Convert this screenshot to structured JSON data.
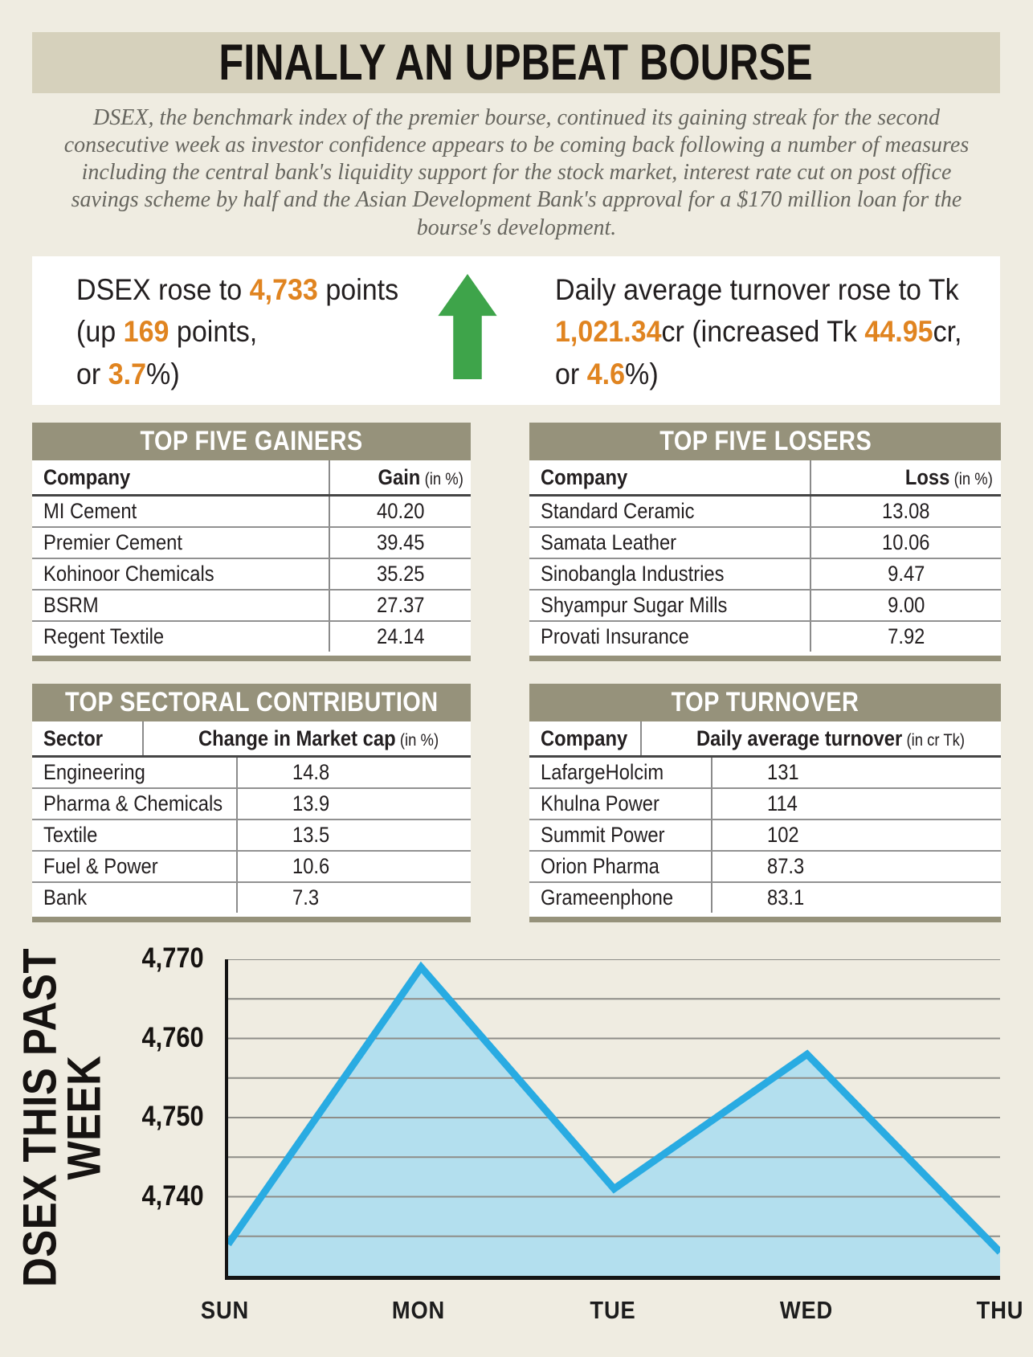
{
  "page_title": "FINALLY AN UPBEAT BOURSE",
  "intro_text": "DSEX, the benchmark index of the premier bourse, continued its gaining streak for the second consecutive week as investor confidence appears to be coming back following a number of measures including the central bank's liquidity support for the stock market, interest rate cut on post office savings scheme by half and the Asian Development Bank's approval for a $170 million loan for the bourse's development.",
  "stats": {
    "left": {
      "line1": [
        "DSEX rose to ",
        "4,733",
        " points"
      ],
      "line2": [
        "(up ",
        "169",
        " points,"
      ],
      "line3": [
        "or ",
        "3.7",
        "%)"
      ]
    },
    "arrow_icon": "green-up-arrow",
    "right": {
      "line1": "Daily average turnover rose to Tk",
      "line2": [
        "1,021.34",
        "cr (increased Tk ",
        "44.95",
        "cr,"
      ],
      "line3": [
        "or ",
        "4.6",
        "%)"
      ]
    }
  },
  "tables": {
    "gainers": {
      "title": "TOP FIVE GAINERS",
      "col1_header": "Company",
      "col2_header": "Gain",
      "col2_unit": "(in %)",
      "rows": [
        {
          "name": "MI Cement",
          "value": "40.20"
        },
        {
          "name": "Premier Cement",
          "value": "39.45"
        },
        {
          "name": "Kohinoor Chemicals",
          "value": "35.25"
        },
        {
          "name": "BSRM",
          "value": "27.37"
        },
        {
          "name": "Regent Textile",
          "value": "24.14"
        }
      ]
    },
    "losers": {
      "title": "TOP FIVE LOSERS",
      "col1_header": "Company",
      "col2_header": "Loss",
      "col2_unit": "(in %)",
      "rows": [
        {
          "name": "Standard Ceramic",
          "value": "13.08"
        },
        {
          "name": "Samata Leather",
          "value": "10.06"
        },
        {
          "name": "Sinobangla Industries",
          "value": "9.47"
        },
        {
          "name": "Shyampur Sugar Mills",
          "value": "9.00"
        },
        {
          "name": "Provati Insurance",
          "value": "7.92"
        }
      ]
    },
    "sectoral": {
      "title": "TOP SECTORAL CONTRIBUTION",
      "col1_header": "Sector",
      "col2_header": "Change in Market cap",
      "col2_unit": "(in %)",
      "rows": [
        {
          "name": "Engineering",
          "value": "14.8"
        },
        {
          "name": "Pharma & Chemicals",
          "value": "13.9"
        },
        {
          "name": "Textile",
          "value": "13.5"
        },
        {
          "name": "Fuel & Power",
          "value": "10.6"
        },
        {
          "name": "Bank",
          "value": "7.3"
        }
      ]
    },
    "turnover": {
      "title": "TOP TURNOVER",
      "col1_header": "Company",
      "col2_header": "Daily average turnover",
      "col2_unit": "(in cr Tk)",
      "rows": [
        {
          "name": "LafargeHolcim",
          "value": "131"
        },
        {
          "name": "Khulna Power",
          "value": "114"
        },
        {
          "name": "Summit Power",
          "value": "102"
        },
        {
          "name": "Orion Pharma",
          "value": "87.3"
        },
        {
          "name": "Grameenphone",
          "value": "83.1"
        }
      ]
    }
  },
  "chart_data": {
    "type": "area",
    "title_lines": [
      "DSEX THIS PAST",
      "WEEK"
    ],
    "categories": [
      "SUN",
      "MON",
      "TUE",
      "WED",
      "THU"
    ],
    "values": [
      4734,
      4769,
      4741,
      4758,
      4733
    ],
    "ylim": [
      4730,
      4770
    ],
    "ytick_labels": [
      "4,770",
      "4,760",
      "4,750",
      "4,740"
    ],
    "ytick_values": [
      4770,
      4760,
      4750,
      4740
    ],
    "gridline_step": 5,
    "grid": true,
    "legend": "none",
    "line_color": "#29abe2",
    "fill_color": "#b3dfee",
    "gridline_color": "#8e8d88"
  },
  "colors": {
    "page_bg": "#efece1",
    "banner_bg": "#d6d1bc",
    "panel_header_bg": "#96927b",
    "accent_orange": "#e08420",
    "arrow_green": "#3ea44a",
    "chart_line_blue": "#29abe2",
    "chart_fill_blue": "#b3dfee"
  }
}
